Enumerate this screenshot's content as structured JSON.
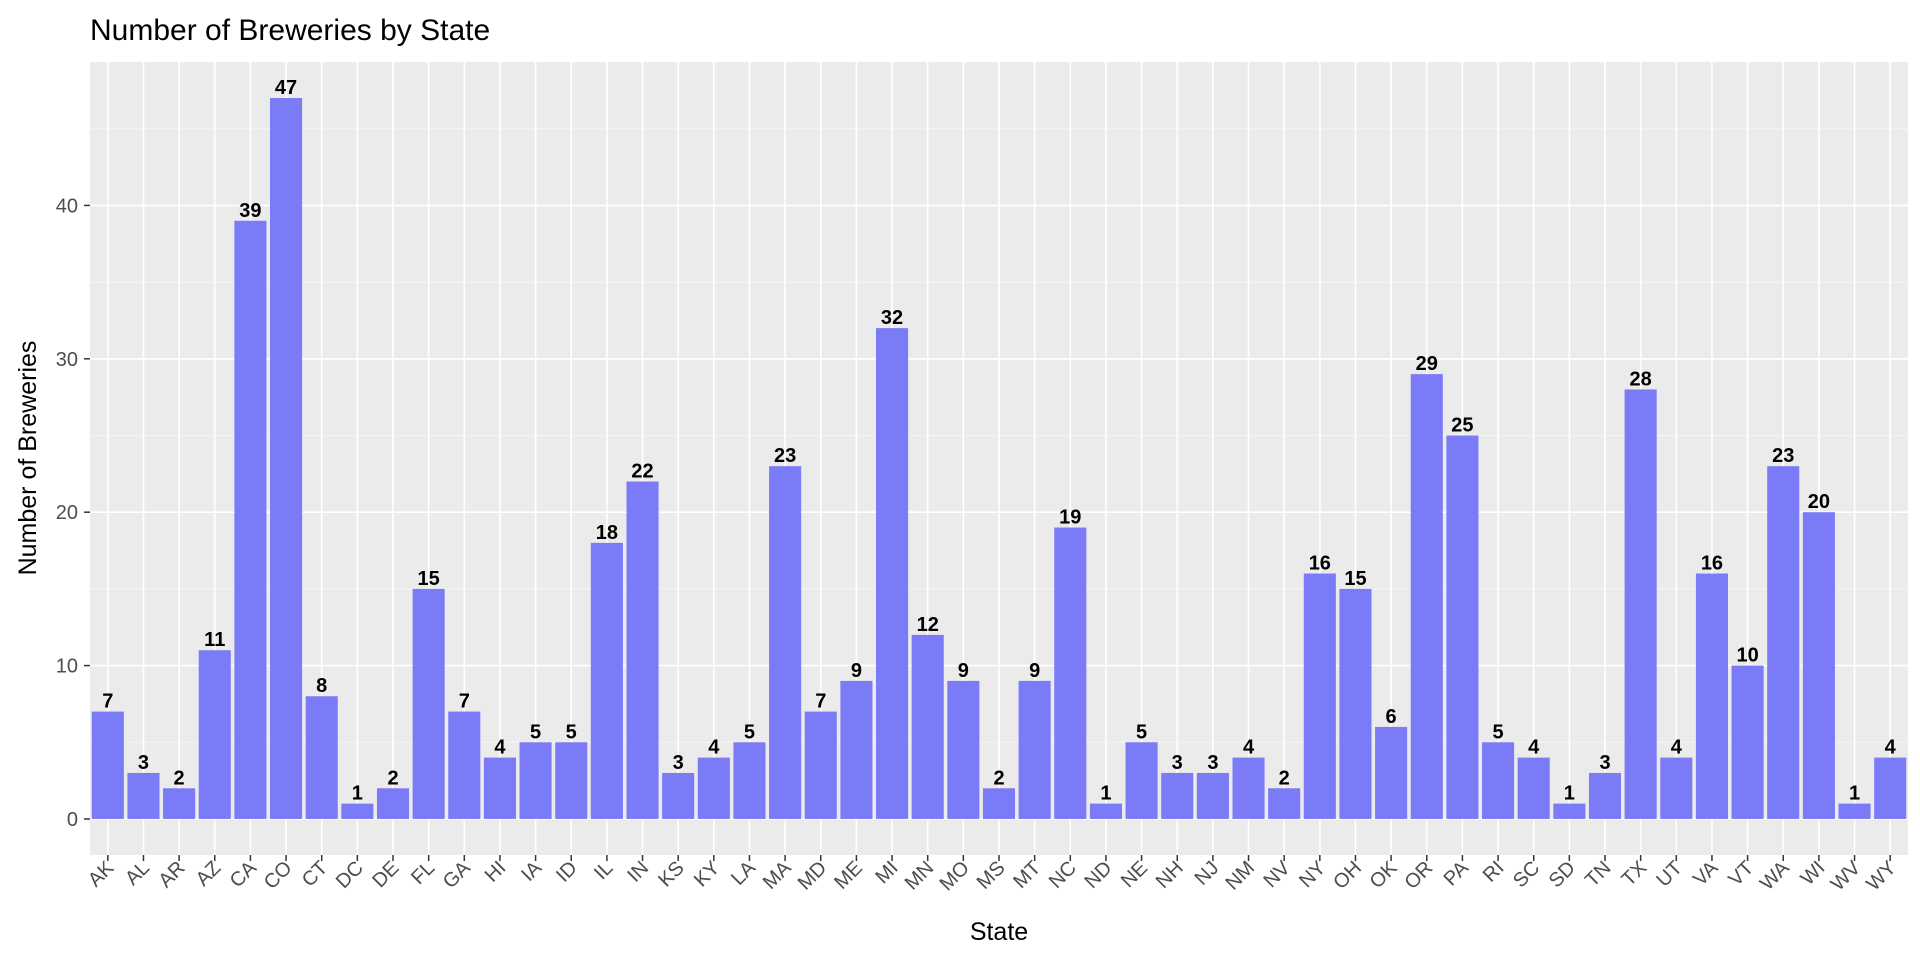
{
  "chart_data": {
    "type": "bar",
    "title": "Number of Breweries by State",
    "xlabel": "State",
    "ylabel": "Number of Breweries",
    "categories": [
      "AK",
      "AL",
      "AR",
      "AZ",
      "CA",
      "CO",
      "CT",
      "DC",
      "DE",
      "FL",
      "GA",
      "HI",
      "IA",
      "ID",
      "IL",
      "IN",
      "KS",
      "KY",
      "LA",
      "MA",
      "MD",
      "ME",
      "MI",
      "MN",
      "MO",
      "MS",
      "MT",
      "NC",
      "ND",
      "NE",
      "NH",
      "NJ",
      "NM",
      "NV",
      "NY",
      "OH",
      "OK",
      "OR",
      "PA",
      "RI",
      "SC",
      "SD",
      "TN",
      "TX",
      "UT",
      "VA",
      "VT",
      "WA",
      "WI",
      "WV",
      "WY"
    ],
    "values": [
      7,
      3,
      2,
      11,
      39,
      47,
      8,
      1,
      2,
      15,
      7,
      4,
      5,
      5,
      18,
      22,
      3,
      4,
      5,
      23,
      7,
      9,
      32,
      12,
      9,
      2,
      9,
      19,
      1,
      5,
      3,
      3,
      4,
      2,
      16,
      15,
      6,
      29,
      25,
      5,
      4,
      1,
      3,
      28,
      4,
      16,
      10,
      23,
      20,
      1,
      4
    ],
    "y_ticks": [
      0,
      10,
      20,
      30,
      40
    ],
    "ylim": [
      -2.35,
      49.35
    ],
    "grid": true,
    "legend": "none",
    "colors": {
      "bar": "#7b7bf7",
      "panel": "#ebebeb",
      "grid_major": "#ffffff",
      "grid_minor": "#f5f5f5",
      "tick": "#333333"
    }
  }
}
